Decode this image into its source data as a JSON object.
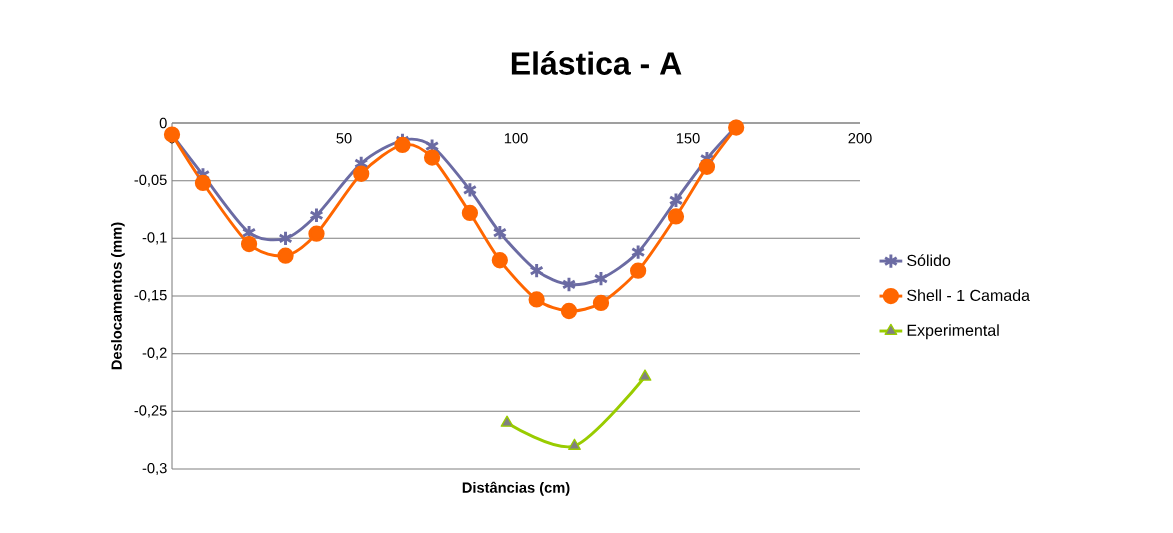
{
  "chart_data": {
    "type": "line",
    "title": "Elástica - A",
    "xlabel": "Distâncias (cm)",
    "ylabel": "Deslocamentos (mm)",
    "xlim": [
      0,
      200
    ],
    "xticks": [
      0,
      50,
      100,
      150,
      200
    ],
    "ylim": [
      -0.3,
      0
    ],
    "yticks": [
      {
        "value": -0.3,
        "label": "-0,3"
      },
      {
        "value": -0.25,
        "label": "-0,25"
      },
      {
        "value": -0.2,
        "label": "-0,2"
      },
      {
        "value": -0.15,
        "label": "-0,15"
      },
      {
        "value": -0.1,
        "label": "-0,1"
      },
      {
        "value": -0.05,
        "label": "-0,05"
      },
      0
    ],
    "grid": "y",
    "legend": "right",
    "series": [
      {
        "name": "Sólido",
        "color": "#6b6ba3",
        "marker": "cross",
        "x": [
          0,
          9,
          22.4,
          33,
          42,
          55,
          67,
          75.6,
          86.6,
          95.3,
          106,
          115.4,
          124.7,
          135.5,
          146.5,
          155.5,
          164
        ],
        "values": [
          -0.01,
          -0.045,
          -0.095,
          -0.1,
          -0.08,
          -0.035,
          -0.015,
          -0.02,
          -0.058,
          -0.095,
          -0.128,
          -0.14,
          -0.135,
          -0.112,
          -0.067,
          -0.031,
          -0.003
        ]
      },
      {
        "name": "Shell - 1 Camada",
        "color": "#ff6600",
        "marker": "circle",
        "x": [
          0,
          9,
          22.4,
          33,
          42,
          55,
          67,
          75.6,
          86.6,
          95.3,
          106,
          115.4,
          124.7,
          135.5,
          146.5,
          155.5,
          164
        ],
        "values": [
          -0.01,
          -0.052,
          -0.105,
          -0.115,
          -0.096,
          -0.044,
          -0.019,
          -0.03,
          -0.078,
          -0.119,
          -0.153,
          -0.163,
          -0.156,
          -0.128,
          -0.081,
          -0.038,
          -0.004
        ]
      },
      {
        "name": "Experimental",
        "color": "#99cc00",
        "marker": "triangle",
        "x": [
          97.4,
          117,
          137.5
        ],
        "values": [
          -0.26,
          -0.28,
          -0.22
        ]
      }
    ]
  }
}
